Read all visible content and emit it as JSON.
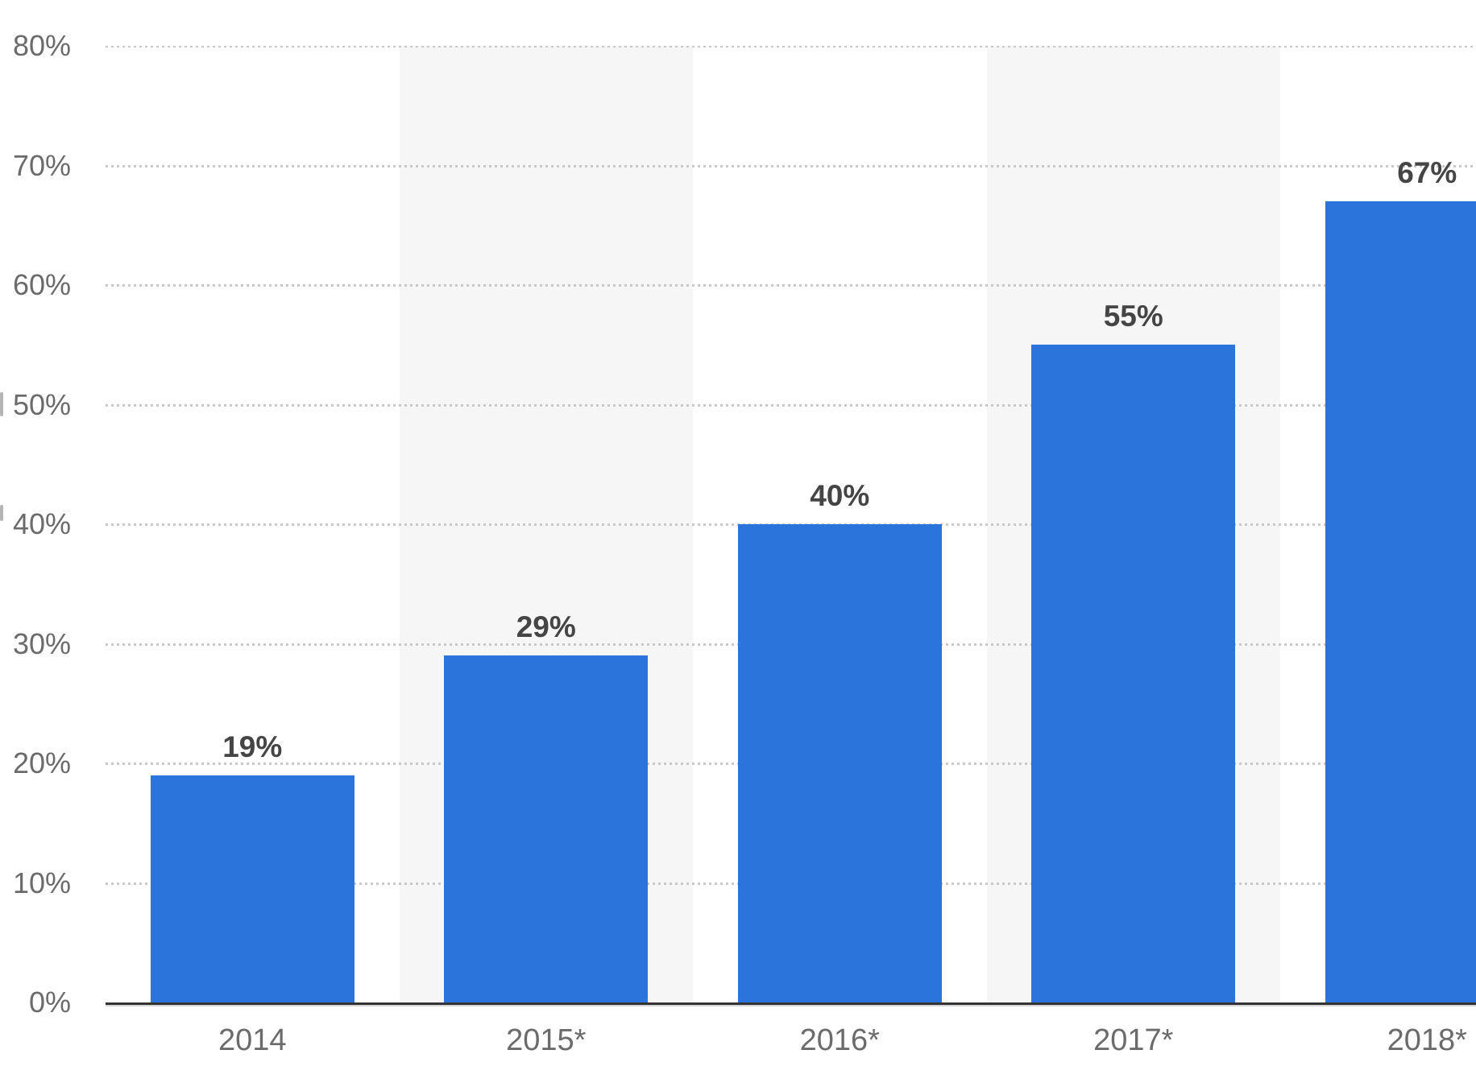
{
  "chart_data": {
    "type": "bar",
    "title": "",
    "xlabel": "",
    "ylabel": "",
    "categories": [
      "2014",
      "2015*",
      "2016*",
      "2017*",
      "2018*"
    ],
    "values": [
      19,
      29,
      40,
      55,
      67
    ],
    "data_labels": [
      "19%",
      "29%",
      "40%",
      "55%",
      "67%"
    ],
    "y_ticks": [
      "0%",
      "10%",
      "20%",
      "30%",
      "40%",
      "50%",
      "60%",
      "70%",
      "80%"
    ],
    "ylim": [
      0,
      80
    ],
    "grid": "horizontal-dotted",
    "legend": "none",
    "banded_categories": [
      "2015*",
      "2017*"
    ],
    "colors": {
      "bar": "#2a74dc",
      "column_band": "#f6f6f6",
      "gridline": "#c9c9c9",
      "axis_line": "#333333",
      "data_label": "#454545",
      "tick_label": "#6b6b6b",
      "background": "#ffffff"
    }
  }
}
